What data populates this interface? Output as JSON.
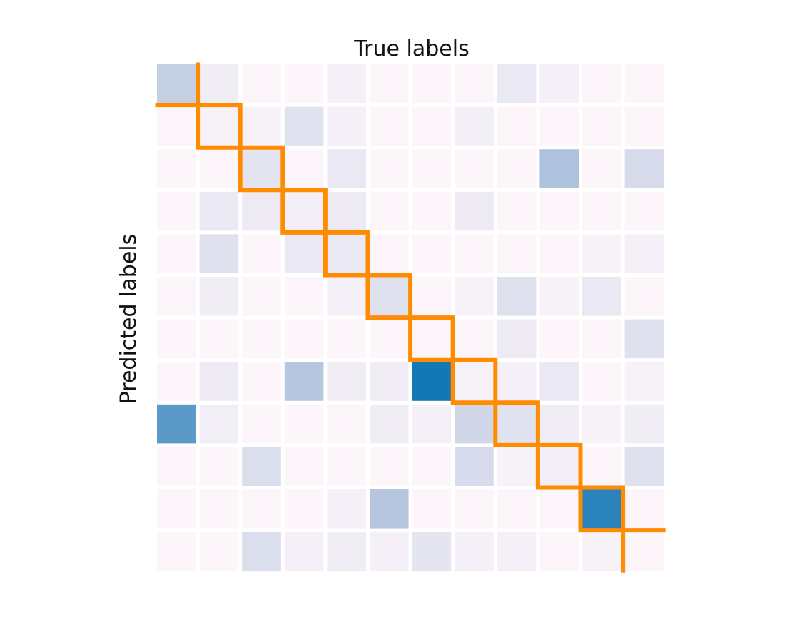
{
  "chart_data": {
    "type": "heatmap",
    "xlabel": "True labels",
    "ylabel": "Predicted labels",
    "n_classes": 12,
    "value_range": [
      0,
      1
    ],
    "colors": {
      "low": "#fff7fb",
      "mid": "#bdc9e1",
      "high": "#0571b0",
      "diagonal_path": "#ff8c00",
      "cell_gap": "#ffffff"
    },
    "matrix": [
      [
        0.35,
        0.09,
        0.02,
        0.02,
        0.06,
        0.02,
        0.02,
        0.02,
        0.13,
        0.06,
        0.02,
        0.02
      ],
      [
        0.02,
        0.05,
        0.05,
        0.18,
        0.06,
        0.02,
        0.02,
        0.07,
        0.02,
        0.02,
        0.02,
        0.02
      ],
      [
        0.02,
        0.02,
        0.16,
        0.02,
        0.13,
        0.02,
        0.02,
        0.02,
        0.02,
        0.45,
        0.02,
        0.25
      ],
      [
        0.02,
        0.12,
        0.11,
        0.07,
        0.11,
        0.02,
        0.02,
        0.11,
        0.02,
        0.02,
        0.02,
        0.02
      ],
      [
        0.02,
        0.19,
        0.02,
        0.13,
        0.12,
        0.02,
        0.02,
        0.02,
        0.02,
        0.02,
        0.05,
        0.06
      ],
      [
        0.02,
        0.09,
        0.02,
        0.02,
        0.06,
        0.19,
        0.02,
        0.05,
        0.19,
        0.05,
        0.13,
        0.02
      ],
      [
        0.02,
        0.02,
        0.02,
        0.02,
        0.02,
        0.02,
        0.02,
        0.02,
        0.11,
        0.02,
        0.02,
        0.19
      ],
      [
        0.02,
        0.11,
        0.02,
        0.42,
        0.09,
        0.09,
        0.95,
        0.05,
        0.06,
        0.13,
        0.02,
        0.05
      ],
      [
        0.72,
        0.08,
        0.02,
        0.02,
        0.02,
        0.09,
        0.06,
        0.28,
        0.18,
        0.09,
        0.05,
        0.09
      ],
      [
        0.02,
        0.02,
        0.22,
        0.02,
        0.02,
        0.02,
        0.02,
        0.24,
        0.05,
        0.07,
        0.02,
        0.19
      ],
      [
        0.02,
        0.02,
        0.02,
        0.02,
        0.06,
        0.42,
        0.02,
        0.02,
        0.02,
        0.02,
        0.88,
        0.02
      ],
      [
        0.02,
        0.02,
        0.22,
        0.06,
        0.09,
        0.06,
        0.16,
        0.06,
        0.06,
        0.02,
        0.05,
        0.02
      ]
    ]
  }
}
